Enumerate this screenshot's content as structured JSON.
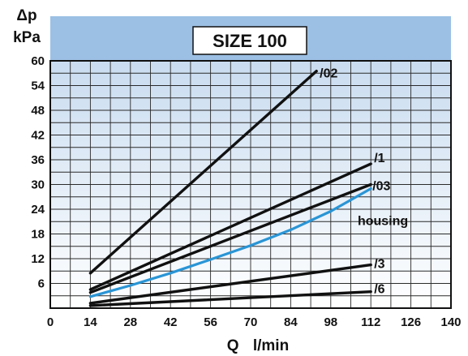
{
  "chart_data": {
    "type": "line",
    "title": "SIZE 100",
    "ylabel_symbol": "Δp",
    "ylabel_unit": "kPa",
    "xlabel_symbol": "Q",
    "xlabel_unit": "l/min",
    "xlim": [
      0,
      140
    ],
    "ylim": [
      0,
      60
    ],
    "x_ticks": [
      0,
      14,
      28,
      42,
      56,
      70,
      84,
      98,
      112,
      126,
      140
    ],
    "y_ticks": [
      6,
      12,
      18,
      24,
      30,
      36,
      42,
      48,
      54,
      60
    ],
    "grid": true,
    "colors": {
      "header_band": "#9cc0e4",
      "plot_top": "#c9dcf0",
      "plot_bottom": "#ffffff",
      "grid": "#2a2a2a",
      "series_default": "#111111",
      "housing": "#2a95d5"
    },
    "series": [
      {
        "name": "/02",
        "x": [
          14,
          93
        ],
        "y": [
          8.5,
          57.5
        ],
        "color": "#111111"
      },
      {
        "name": "/1",
        "x": [
          14,
          112
        ],
        "y": [
          4.5,
          35
        ],
        "color": "#111111"
      },
      {
        "name": "/03",
        "x": [
          14,
          112
        ],
        "y": [
          3.8,
          30
        ],
        "color": "#111111"
      },
      {
        "name": "housing",
        "x": [
          14,
          28,
          42,
          56,
          70,
          84,
          98,
          112
        ],
        "y": [
          2.8,
          5.5,
          8.5,
          11.8,
          15.2,
          19.0,
          23.5,
          29.0
        ],
        "color": "#2a95d5"
      },
      {
        "name": "/3",
        "x": [
          14,
          112
        ],
        "y": [
          1.2,
          10.5
        ],
        "color": "#111111"
      },
      {
        "name": "/6",
        "x": [
          14,
          112
        ],
        "y": [
          0.6,
          4.0
        ],
        "color": "#111111"
      }
    ]
  }
}
